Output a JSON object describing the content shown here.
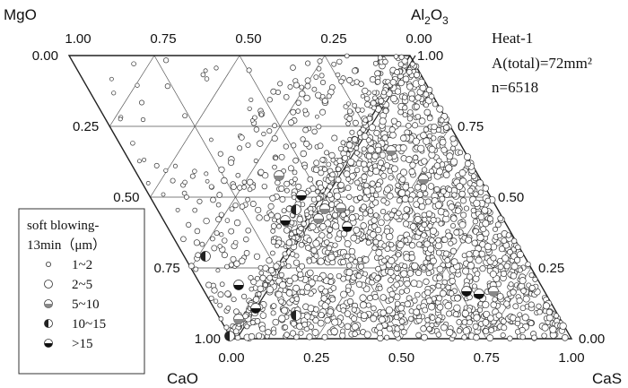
{
  "chart_data": {
    "type": "scatter",
    "diagram": "pseudo-ternary composition diagram (two triangles sharing the Al2O3 vertex)",
    "corner_labels": {
      "top_left": "MgO",
      "top_right": "Al2O3",
      "bottom_left": "CaO",
      "bottom_right": "CaS"
    },
    "axes": {
      "top_edge_ticks": [
        "1.00",
        "0.75",
        "0.50",
        "0.25",
        "0.00"
      ],
      "left_edge_ticks": [
        "0.00",
        "0.25",
        "0.50",
        "0.75",
        "1.00"
      ],
      "bottom_edge_ticks": [
        "0.00",
        "0.25",
        "0.50",
        "0.75",
        "1.00"
      ],
      "right_edge_ticks": [
        "1.00",
        "0.75",
        "0.50",
        "0.25",
        "0.00"
      ]
    },
    "info": {
      "heat": "Heat-1",
      "area": "A(total)=72mm²",
      "count": "n=6518"
    },
    "legend": {
      "title_line1": "soft blowing-",
      "title_line2": "13min（μm）",
      "entries": [
        {
          "label": "1~2",
          "marker": "small-open-circle"
        },
        {
          "label": "2~5",
          "marker": "open-circle"
        },
        {
          "label": "5~10",
          "marker": "circle-lower-half-filled"
        },
        {
          "label": "10~15",
          "marker": "circle-left-half-filled"
        },
        {
          "label": ">15",
          "marker": "circle-mostly-filled"
        }
      ]
    },
    "regions": [
      {
        "name": "left triangle",
        "density": "sparse scatter, clustered near the CaO–Al2O3 edge"
      },
      {
        "name": "right triangle",
        "density": "very dense, covering most of CaO–Al2O3–CaS area"
      }
    ]
  }
}
